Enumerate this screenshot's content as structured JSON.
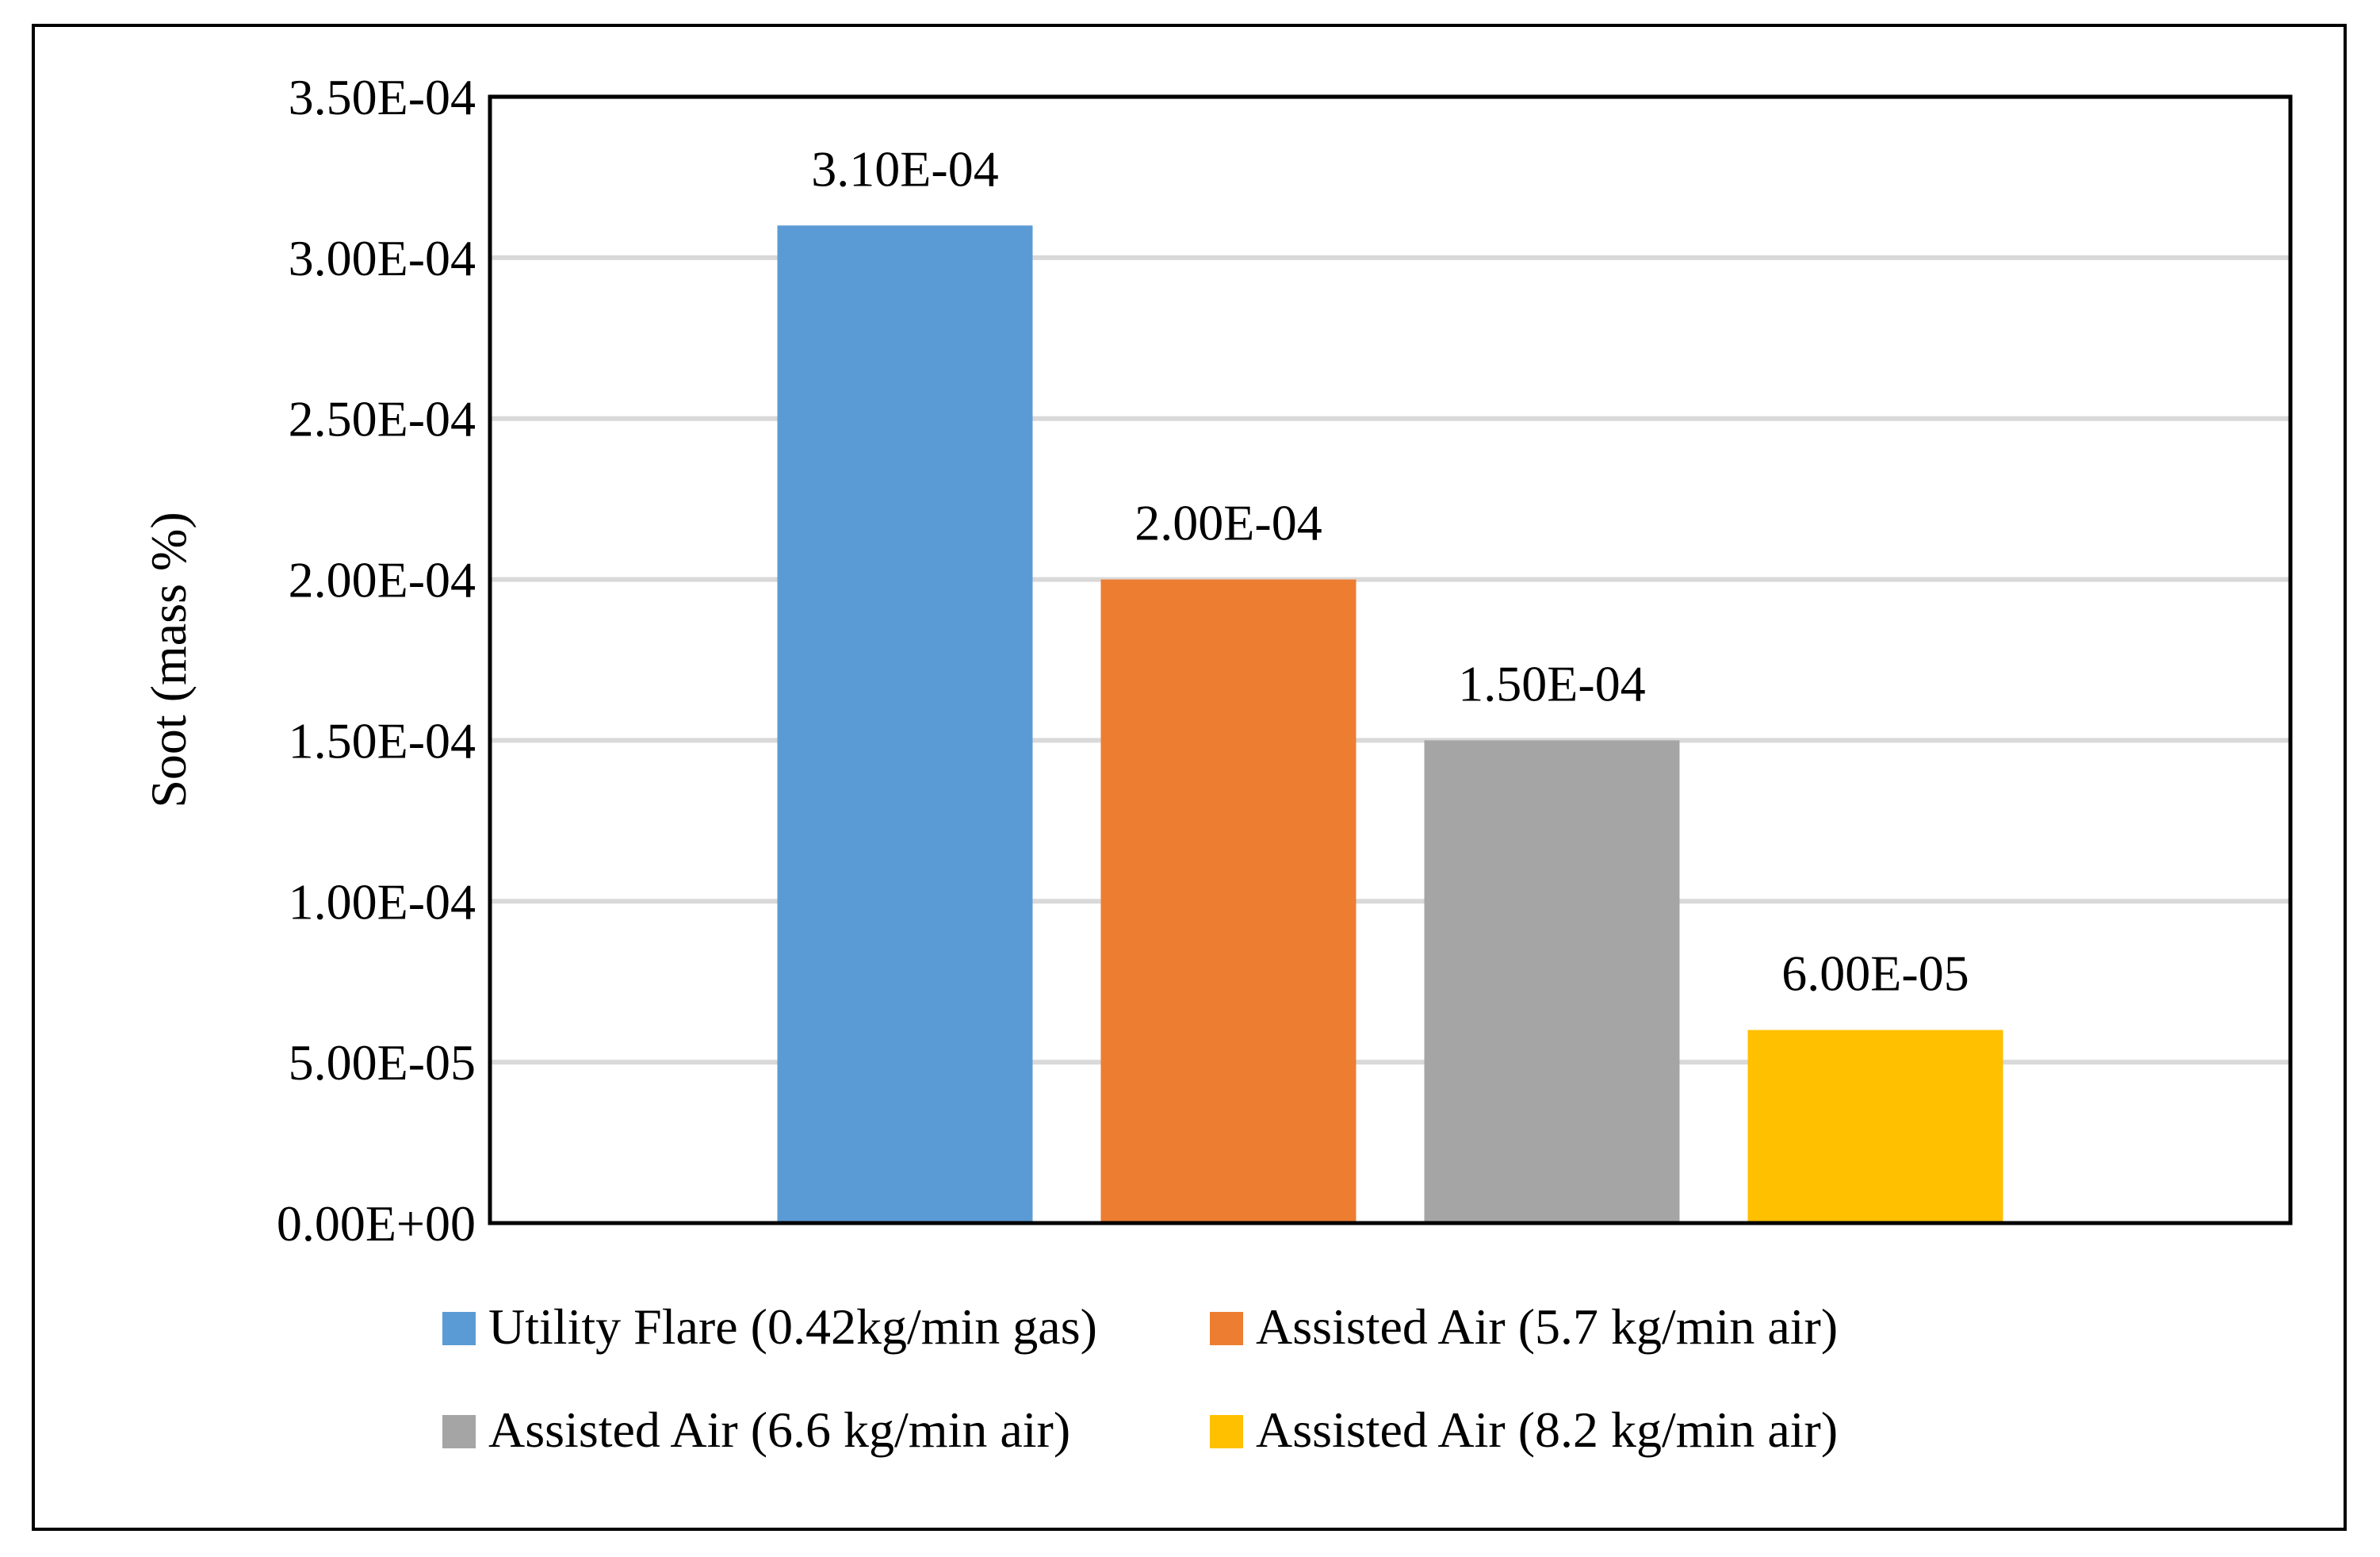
{
  "chart_data": {
    "type": "bar",
    "categories": [
      ""
    ],
    "series": [
      {
        "name": "Utility Flare (0.42kg/min gas)",
        "values": [
          0.00031
        ],
        "value_label": "3.10E-04",
        "color": "#5b9bd5"
      },
      {
        "name": "Assisted Air (5.7 kg/min air)",
        "values": [
          0.0002
        ],
        "value_label": "2.00E-04",
        "color": "#ed7d31"
      },
      {
        "name": "Assisted Air (6.6 kg/min air)",
        "values": [
          0.00015
        ],
        "value_label": "1.50E-04",
        "color": "#a5a5a5"
      },
      {
        "name": "Assisted Air (8.2 kg/min air)",
        "values": [
          6e-05
        ],
        "value_label": "6.00E-05",
        "color": "#ffc000"
      }
    ],
    "title": "",
    "xlabel": "",
    "ylabel": "Soot (mass %)",
    "ylim": [
      0,
      0.00035
    ],
    "yticks": [
      0,
      5e-05,
      0.0001,
      0.00015,
      0.0002,
      0.00025,
      0.0003,
      0.00035
    ],
    "ytick_labels": [
      "0.00E+00",
      "5.00E-05",
      "1.00E-04",
      "1.50E-04",
      "2.00E-04",
      "2.50E-04",
      "3.00E-04",
      "3.50E-04"
    ],
    "grid": true,
    "legend_position": "bottom"
  }
}
